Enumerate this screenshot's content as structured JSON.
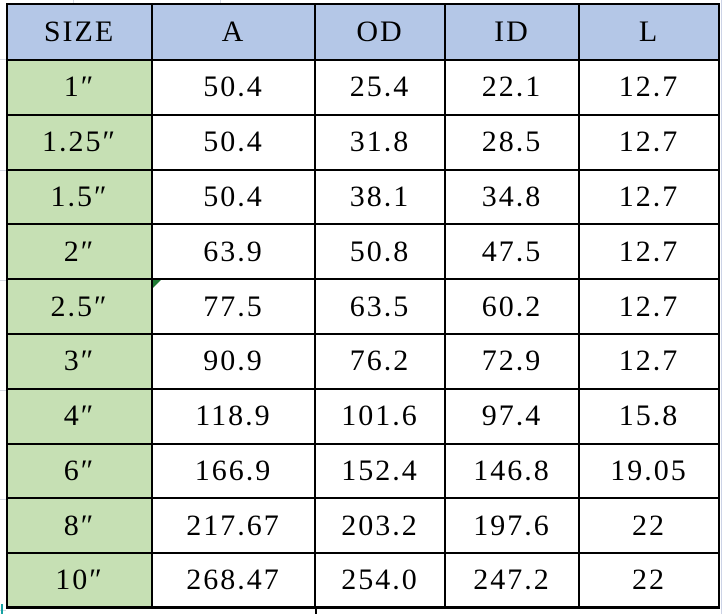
{
  "table": {
    "columns": [
      "SIZE",
      "A",
      "OD",
      "ID",
      "L"
    ],
    "rows": [
      [
        "1″",
        "50.4",
        "25.4",
        "22.1",
        "12.7"
      ],
      [
        "1.25″",
        "50.4",
        "31.8",
        "28.5",
        "12.7"
      ],
      [
        "1.5″",
        "50.4",
        "38.1",
        "34.8",
        "12.7"
      ],
      [
        "2″",
        "63.9",
        "50.8",
        "47.5",
        "12.7"
      ],
      [
        "2.5″",
        "77.5",
        "63.5",
        "60.2",
        "12.7"
      ],
      [
        "3″",
        "90.9",
        "76.2",
        "72.9",
        "12.7"
      ],
      [
        "4″",
        "118.9",
        "101.6",
        "97.4",
        "15.8"
      ],
      [
        "6″",
        "166.9",
        "152.4",
        "146.8",
        "19.05"
      ],
      [
        "8″",
        "217.67",
        "203.2",
        "197.6",
        "22"
      ],
      [
        "10″",
        "268.47",
        "254.0",
        "247.2",
        "22"
      ]
    ],
    "marker": {
      "row_index": 4,
      "col_index": 1,
      "color": "#1f7a33"
    },
    "colors": {
      "header_bg": "#b4c7e7",
      "size_column_bg": "#c6e0b4",
      "cell_bg": "#ffffff",
      "border": "#000000",
      "gridline": "#d6dae3",
      "teal_mark": "#17a2a2"
    }
  }
}
